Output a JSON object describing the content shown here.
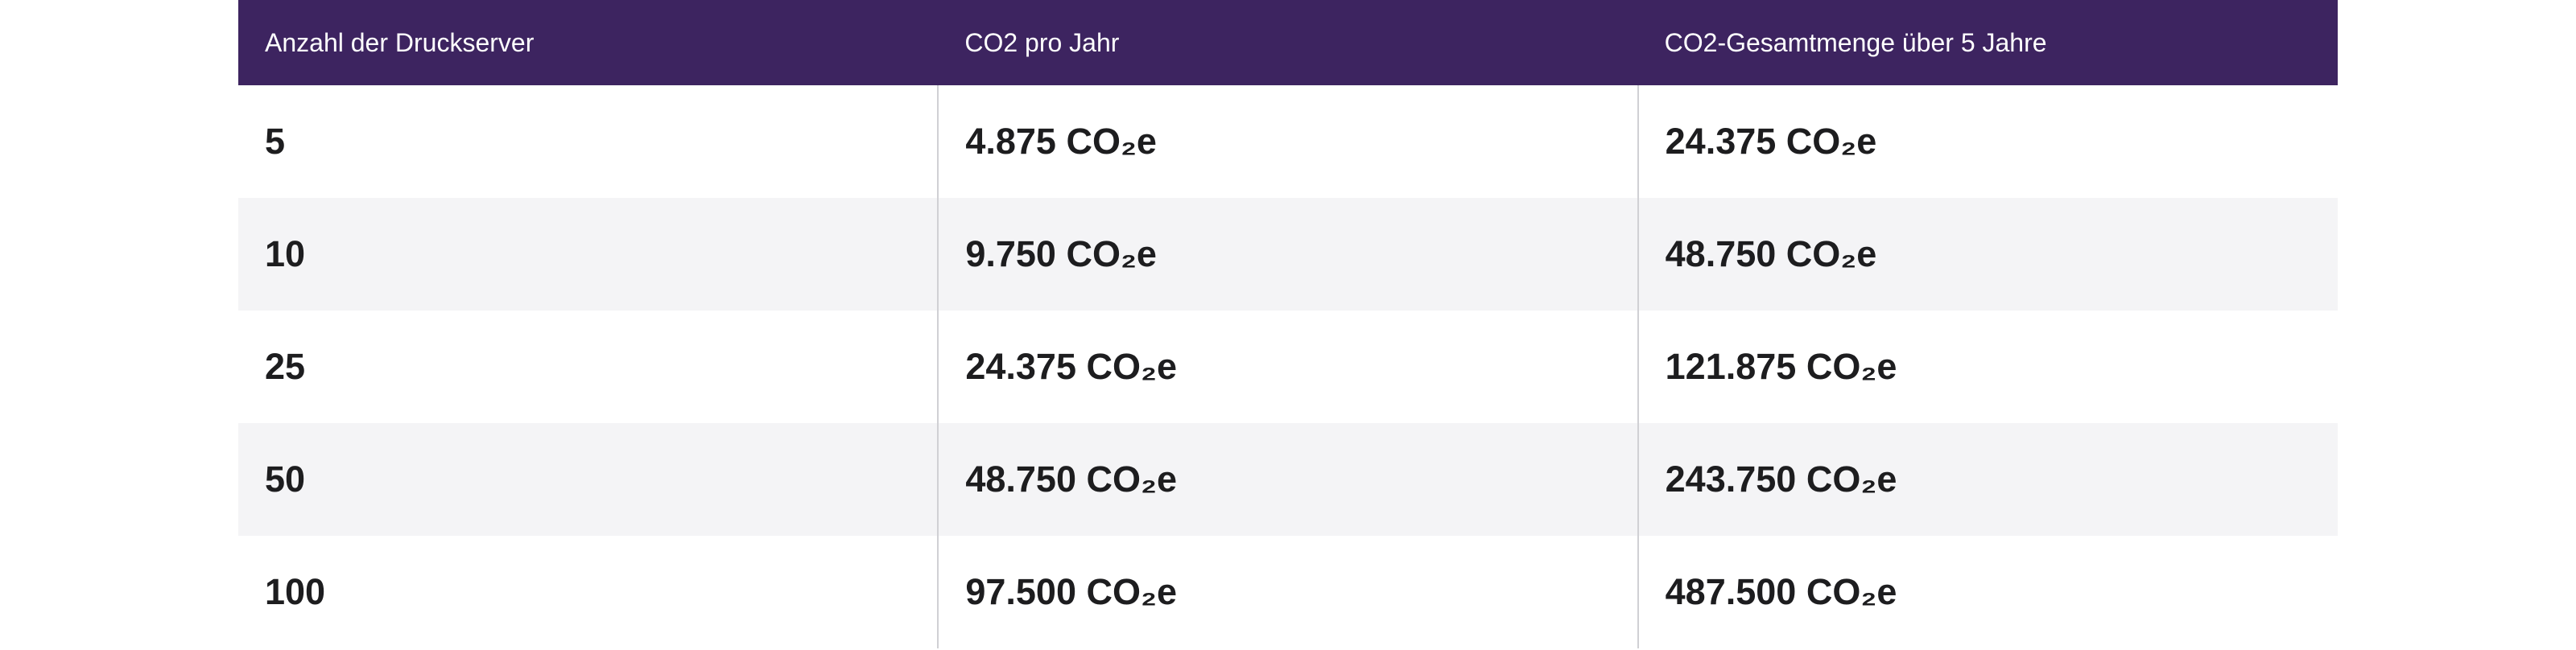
{
  "table": {
    "headers": [
      "Anzahl der Druckserver",
      "CO2 pro Jahr",
      "CO2-Gesamtmenge über 5 Jahre"
    ],
    "rows": [
      [
        "5",
        "4.875 CO₂e",
        "24.375 CO₂e"
      ],
      [
        "10",
        "9.750 CO₂e",
        "48.750 CO₂e"
      ],
      [
        "25",
        "24.375 CO₂e",
        "121.875 CO₂e"
      ],
      [
        "50",
        "48.750 CO₂e",
        "243.750 CO₂e"
      ],
      [
        "100",
        "97.500 CO₂e",
        "487.500 CO₂e"
      ]
    ]
  }
}
